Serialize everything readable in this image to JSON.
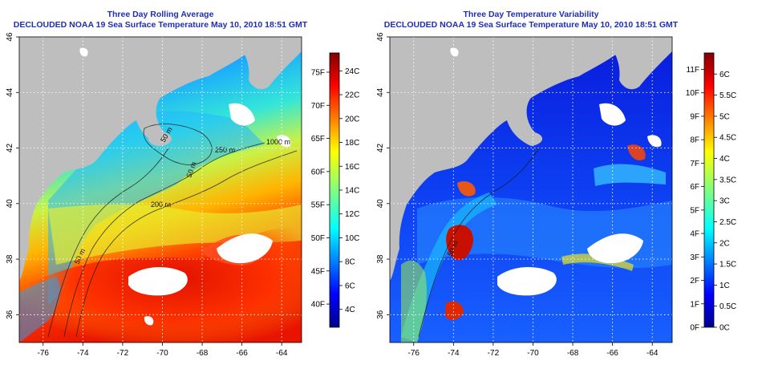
{
  "chart_data": [
    {
      "type": "heatmap",
      "title": "Three Day Rolling Average",
      "subtitle": "DECLOUDED NOAA 19 Sea Surface Temperature May 10, 2010 18:51 GMT",
      "xlim": [
        -77.2,
        -63.0
      ],
      "ylim": [
        35.0,
        46.0
      ],
      "x_ticks": [
        -76,
        -74,
        -72,
        -70,
        -68,
        -66,
        -64
      ],
      "y_ticks": [
        36,
        38,
        40,
        42,
        44,
        46
      ],
      "x_tick_labels": [
        "-76",
        "-74",
        "-72",
        "-70",
        "-68",
        "-66",
        "-64"
      ],
      "y_tick_labels": [
        "36",
        "38",
        "40",
        "42",
        "44",
        "46"
      ],
      "grid": "dotted",
      "contour_labels": [
        "50 m",
        "200 m",
        "250 m",
        "1000 m",
        "50 m",
        "50 m"
      ],
      "colorbar": {
        "range_c": [
          2.5,
          25.5
        ],
        "celsius_labels": [
          "4C",
          "6C",
          "8C",
          "10C",
          "12C",
          "14C",
          "16C",
          "18C",
          "20C",
          "22C",
          "24C"
        ],
        "celsius_values": [
          4,
          6,
          8,
          10,
          12,
          14,
          16,
          18,
          20,
          22,
          24
        ],
        "fahrenheit_labels": [
          "40F",
          "45F",
          "50F",
          "55F",
          "60F",
          "65F",
          "70F",
          "75F"
        ],
        "fahrenheit_values": [
          40,
          45,
          50,
          55,
          60,
          65,
          70,
          75
        ]
      }
    },
    {
      "type": "heatmap",
      "title": "Three Day Temperature Variability",
      "subtitle": "DECLOUDED NOAA 19 Sea Surface Temperature May 10, 2010 18:51 GMT",
      "xlim": [
        -77.2,
        -63.0
      ],
      "ylim": [
        35.0,
        46.0
      ],
      "x_ticks": [
        -76,
        -74,
        -72,
        -70,
        -68,
        -66,
        -64
      ],
      "y_ticks": [
        36,
        38,
        40,
        42,
        44,
        46
      ],
      "x_tick_labels": [
        "-76",
        "-74",
        "-72",
        "-70",
        "-68",
        "-66",
        "-64"
      ],
      "y_tick_labels": [
        "36",
        "38",
        "40",
        "42",
        "44",
        "46"
      ],
      "grid": "dotted",
      "contour_labels": [
        "50 m"
      ],
      "colorbar": {
        "range_c": [
          0,
          6.5
        ],
        "celsius_labels": [
          "0C",
          "0.5C",
          "1C",
          "1.5C",
          "2C",
          "2.5C",
          "3C",
          "3.5C",
          "4C",
          "4.5C",
          "5C",
          "5.5C",
          "6C"
        ],
        "celsius_values": [
          0,
          0.5,
          1,
          1.5,
          2,
          2.5,
          3,
          3.5,
          4,
          4.5,
          5,
          5.5,
          6
        ],
        "fahrenheit_labels": [
          "0F",
          "1F",
          "2F",
          "3F",
          "4F",
          "5F",
          "6F",
          "7F",
          "8F",
          "9F",
          "10F",
          "11F"
        ],
        "fahrenheit_values": [
          0,
          1,
          2,
          3,
          4,
          5,
          6,
          7,
          8,
          9,
          10,
          11
        ]
      }
    }
  ],
  "colors": {
    "title": "#1f2fb0",
    "land": "#bebebe",
    "cloud": "#ffffff",
    "jet": [
      "#00008f",
      "#0000ff",
      "#0080ff",
      "#00ffff",
      "#80ff80",
      "#ffff00",
      "#ff8000",
      "#ff0000",
      "#800000"
    ]
  }
}
